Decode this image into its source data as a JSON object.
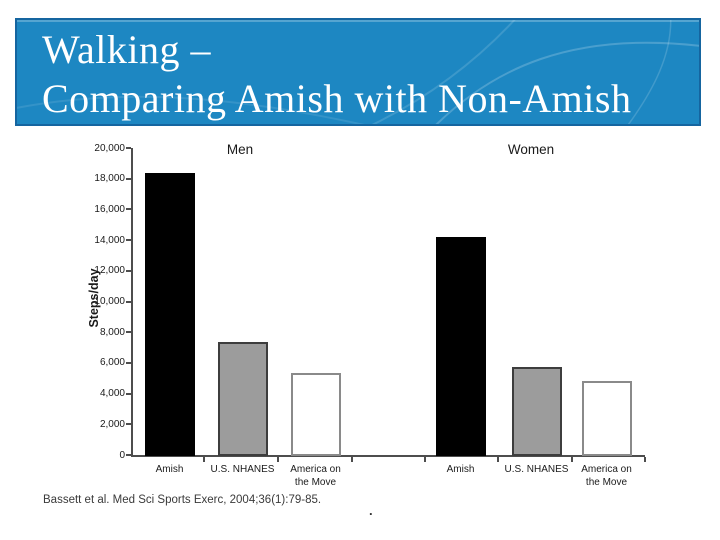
{
  "header": {
    "title_line1": "Walking –",
    "title_line2": "Comparing Amish with Non-Amish",
    "colors": {
      "background": "#1d87c2",
      "border": "#1565a0",
      "text": "#ffffff"
    }
  },
  "chart_data": {
    "type": "bar",
    "title": "",
    "xlabel": "",
    "ylabel": "Steps/day",
    "units": "steps per day",
    "ylim": [
      0,
      20000
    ],
    "ytick_interval": 2000,
    "ytick_labels": [
      "0",
      "2,000",
      "4,000",
      "6,000",
      "8,000",
      "10,000",
      "12,000",
      "14,000",
      "16,000",
      "18,000",
      "20,000"
    ],
    "grid": false,
    "legend": "none",
    "categories": [
      "Amish",
      "U.S. NHANES",
      "America on the Move"
    ],
    "category_label_lines": [
      [
        "Amish"
      ],
      [
        "U.S. NHANES"
      ],
      [
        "America on",
        "the Move"
      ]
    ],
    "groups": [
      {
        "label": "Men",
        "values": [
          18400,
          7400,
          5400
        ]
      },
      {
        "label": "Women",
        "values": [
          14200,
          5800,
          4900
        ]
      }
    ],
    "bar_styles": [
      {
        "key": "amish",
        "fill": "#000000",
        "border": "#000000"
      },
      {
        "key": "us-nhanes",
        "fill": "#9c9c9c",
        "border": "#3d3d3d"
      },
      {
        "key": "america-on-the-move",
        "fill": "#ffffff",
        "border": "#8a8a8a"
      }
    ]
  },
  "footer": {
    "citation": "Bassett et al. Med Sci Sports Exerc, 2004;36(1):79-85.",
    "stray_period": "."
  }
}
